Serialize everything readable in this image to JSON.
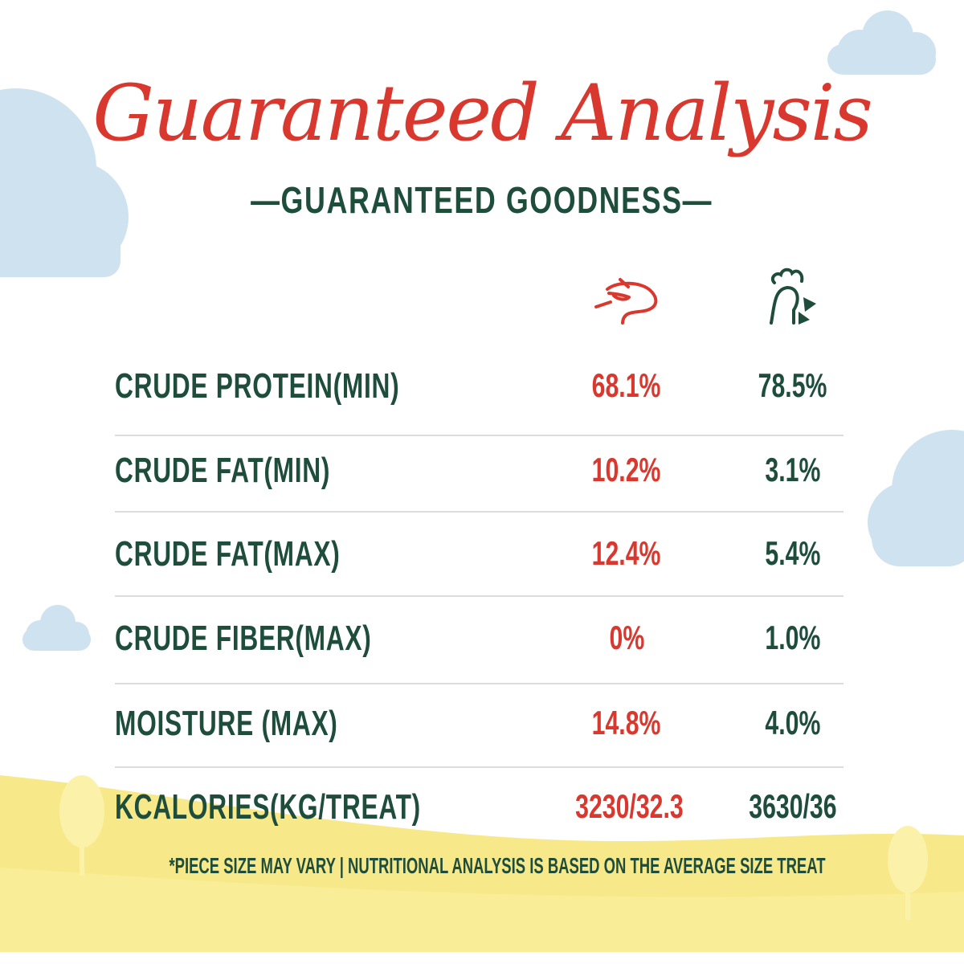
{
  "title": "Guaranteed Analysis",
  "subtitle": "—GUARANTEED GOODNESS—",
  "columns": [
    {
      "icon": "cow-head-icon",
      "color": "#d9382e"
    },
    {
      "icon": "rooster-head-icon",
      "color": "#1e4d3c"
    }
  ],
  "rows": [
    {
      "label": "CRUDE PROTEIN(MIN)",
      "beef": "68.1%",
      "chicken": "78.5%"
    },
    {
      "label": "CRUDE FAT(MIN)",
      "beef": "10.2%",
      "chicken": "3.1%"
    },
    {
      "label": "CRUDE FAT(MAX)",
      "beef": "12.4%",
      "chicken": "5.4%"
    },
    {
      "label": "CRUDE FIBER(MAX)",
      "beef": "0%",
      "chicken": "1.0%"
    },
    {
      "label": "MOISTURE (MAX)",
      "beef": "14.8%",
      "chicken": "4.0%"
    },
    {
      "label": "KCALORIES(KG/TREAT)",
      "beef": "3230/32.3",
      "chicken": "3630/36"
    }
  ],
  "footnote": "*PIECE SIZE MAY VARY | NUTRITIONAL ANALYSIS IS BASED ON THE AVERAGE SIZE TREAT",
  "colors": {
    "accent_red": "#d9382e",
    "text_green": "#1e4d3c",
    "cloud": "#cfe2ef",
    "ground": "#f7e98a"
  }
}
